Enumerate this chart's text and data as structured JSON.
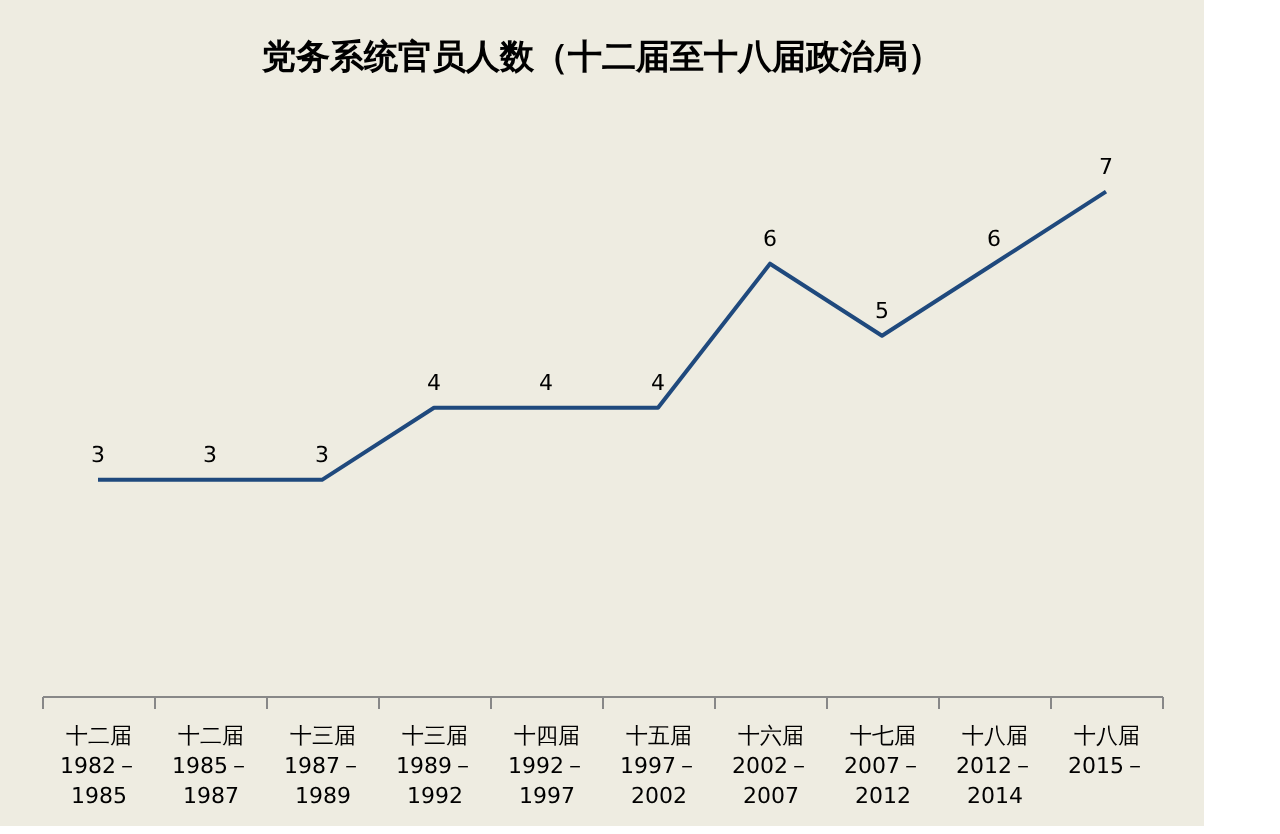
{
  "chart_data": {
    "type": "line",
    "title": "党务系统官员人数（十二届至十八届政治局）",
    "categories": [
      "十二届\n1982－\n1985",
      "十二届\n1985－\n1987",
      "十三届\n1987－\n1989",
      "十三届\n1989－\n1992",
      "十四届\n1992－\n1997",
      "十五届\n1997－\n2002",
      "十六届\n2002－\n2007",
      "十七届\n2007－\n2012",
      "十八届\n2012－\n2014",
      "十八届\n2015－"
    ],
    "series": [
      {
        "color": "#1f497d",
        "values": [
          3,
          3,
          3,
          4,
          4,
          4,
          6,
          5,
          6,
          7
        ]
      }
    ],
    "data_labels": true,
    "grid": false,
    "marker": "none",
    "line_style": "solid"
  }
}
